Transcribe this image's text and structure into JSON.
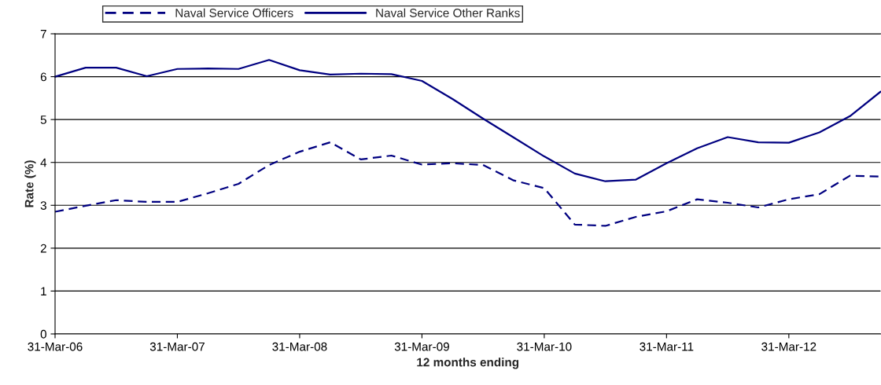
{
  "chart_data": {
    "type": "line",
    "xlabel": "12 months ending",
    "ylabel": "Rate (%)",
    "categories": [
      "31-Mar-06",
      null,
      null,
      null,
      "31-Mar-07",
      null,
      null,
      null,
      "31-Mar-08",
      null,
      null,
      null,
      "31-Mar-09",
      null,
      null,
      null,
      "31-Mar-10",
      null,
      null,
      null,
      "31-Mar-11",
      null,
      null,
      null,
      "31-Mar-12",
      null,
      null,
      null
    ],
    "series": [
      {
        "name": "Naval Service Officers",
        "color": "#000080",
        "line_style": "dashed",
        "values": [
          2.85,
          2.99,
          3.12,
          3.08,
          3.08,
          3.28,
          3.5,
          3.94,
          4.25,
          4.47,
          4.07,
          4.16,
          3.95,
          3.98,
          3.94,
          3.58,
          3.4,
          2.55,
          2.52,
          2.73,
          2.86,
          3.14,
          3.06,
          2.95,
          3.14,
          3.26,
          3.69,
          3.67
        ]
      },
      {
        "name": "Naval Service Other Ranks",
        "color": "#000080",
        "line_style": "solid",
        "values": [
          6.0,
          6.21,
          6.21,
          6.01,
          6.18,
          6.19,
          6.18,
          6.39,
          6.15,
          6.05,
          6.07,
          6.06,
          5.9,
          5.48,
          5.02,
          4.58,
          4.14,
          3.74,
          3.56,
          3.6,
          3.98,
          4.33,
          4.59,
          4.47,
          4.46,
          4.7,
          5.08,
          5.65
        ]
      }
    ],
    "ylim": [
      0,
      7
    ],
    "yticks": [
      0,
      1,
      2,
      3,
      4,
      5,
      6,
      7
    ],
    "grid": "y",
    "legend": "top",
    "marker": "none"
  }
}
